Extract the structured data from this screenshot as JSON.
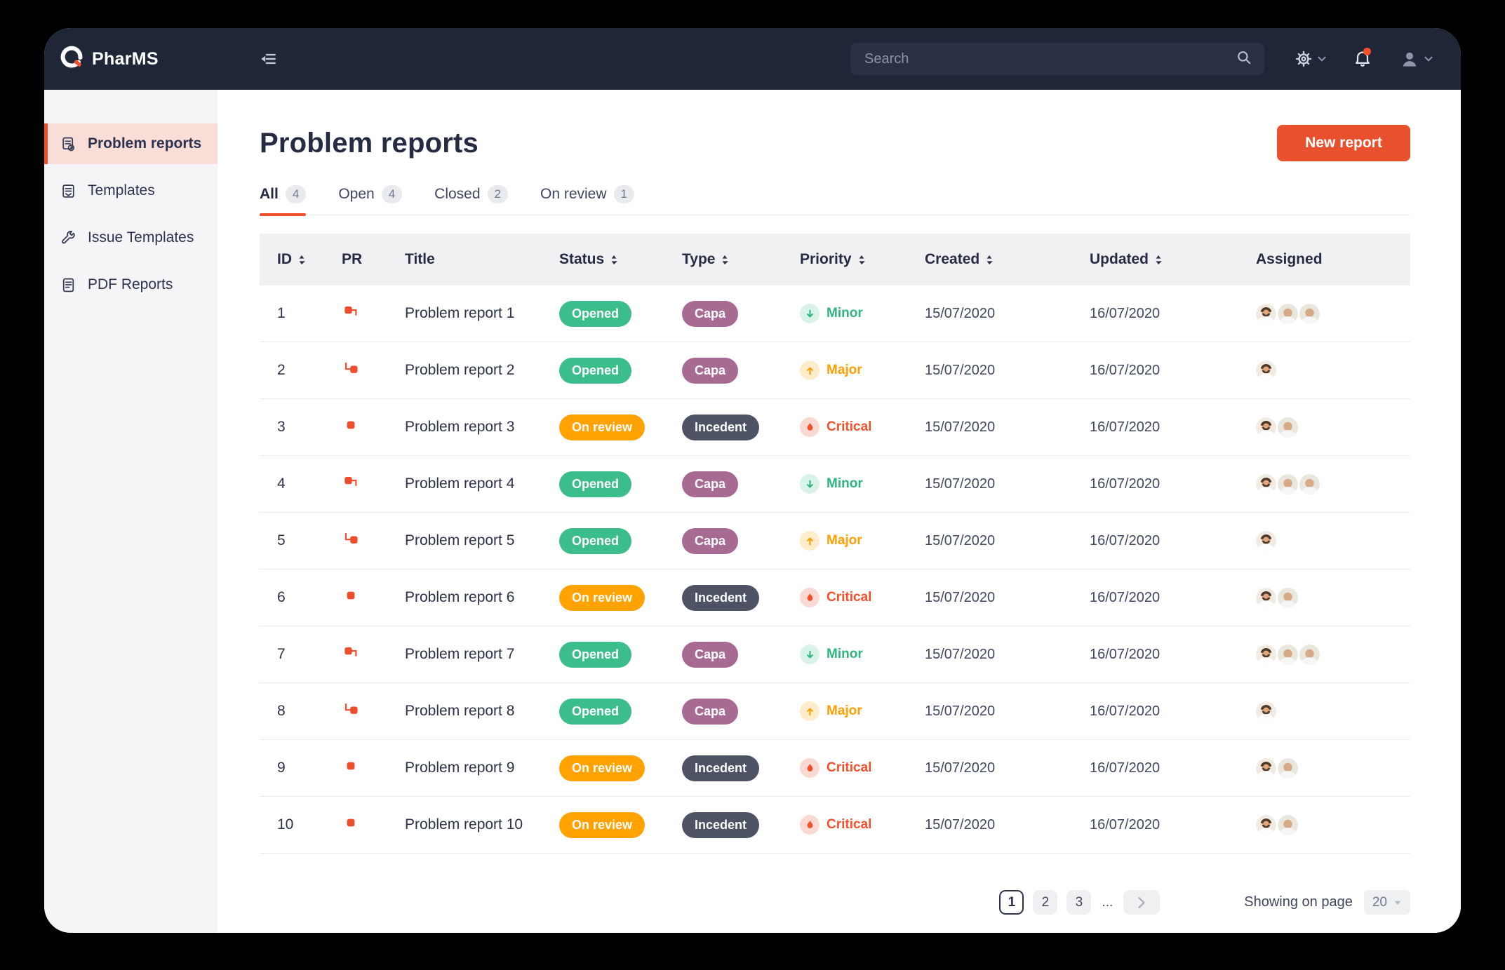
{
  "app": {
    "brand": "PharMS"
  },
  "header": {
    "search_placeholder": "Search",
    "icons": [
      "collapse-sidebar-icon",
      "search-icon",
      "gear-icon",
      "bell-icon",
      "user-icon",
      "chevron-down-icon"
    ]
  },
  "sidebar": {
    "items": [
      {
        "label": "Problem reports",
        "icon": "problem-report-icon",
        "active": true
      },
      {
        "label": "Templates",
        "icon": "templates-icon",
        "active": false
      },
      {
        "label": "Issue Templates",
        "icon": "wrench-icon",
        "active": false
      },
      {
        "label": "PDF Reports",
        "icon": "pdf-report-icon",
        "active": false
      }
    ]
  },
  "page": {
    "title": "Problem reports",
    "new_report_label": "New report"
  },
  "tabs": [
    {
      "label": "All",
      "count": "4",
      "active": true
    },
    {
      "label": "Open",
      "count": "4",
      "active": false
    },
    {
      "label": "Closed",
      "count": "2",
      "active": false
    },
    {
      "label": "On review",
      "count": "1",
      "active": false
    }
  ],
  "table": {
    "columns": [
      {
        "label": "ID",
        "sortable": true
      },
      {
        "label": "PR",
        "sortable": false
      },
      {
        "label": "Title",
        "sortable": false
      },
      {
        "label": "Status",
        "sortable": true
      },
      {
        "label": "Type",
        "sortable": true
      },
      {
        "label": "Priority",
        "sortable": true
      },
      {
        "label": "Created",
        "sortable": true
      },
      {
        "label": "Updated",
        "sortable": true
      },
      {
        "label": "Assigned",
        "sortable": false
      }
    ],
    "rows": [
      {
        "id": "1",
        "pr": "parent",
        "title": "Problem report 1",
        "status": "Opened",
        "type": "Capa",
        "priority": "Minor",
        "created": "15/07/2020",
        "updated": "16/07/2020",
        "assignees": [
          "beard",
          "bald",
          "bald"
        ]
      },
      {
        "id": "2",
        "pr": "child",
        "title": "Problem report 2",
        "status": "Opened",
        "type": "Capa",
        "priority": "Major",
        "created": "15/07/2020",
        "updated": "16/07/2020",
        "assignees": [
          "beard"
        ]
      },
      {
        "id": "3",
        "pr": "single",
        "title": "Problem report 3",
        "status": "On review",
        "type": "Incedent",
        "priority": "Critical",
        "created": "15/07/2020",
        "updated": "16/07/2020",
        "assignees": [
          "beard",
          "bald"
        ]
      },
      {
        "id": "4",
        "pr": "parent",
        "title": "Problem report 4",
        "status": "Opened",
        "type": "Capa",
        "priority": "Minor",
        "created": "15/07/2020",
        "updated": "16/07/2020",
        "assignees": [
          "beard",
          "bald",
          "bald"
        ]
      },
      {
        "id": "5",
        "pr": "child",
        "title": "Problem report 5",
        "status": "Opened",
        "type": "Capa",
        "priority": "Major",
        "created": "15/07/2020",
        "updated": "16/07/2020",
        "assignees": [
          "beard"
        ]
      },
      {
        "id": "6",
        "pr": "single",
        "title": "Problem report 6",
        "status": "On review",
        "type": "Incedent",
        "priority": "Critical",
        "created": "15/07/2020",
        "updated": "16/07/2020",
        "assignees": [
          "beard",
          "bald"
        ]
      },
      {
        "id": "7",
        "pr": "parent",
        "title": "Problem report 7",
        "status": "Opened",
        "type": "Capa",
        "priority": "Minor",
        "created": "15/07/2020",
        "updated": "16/07/2020",
        "assignees": [
          "beard",
          "bald",
          "bald"
        ]
      },
      {
        "id": "8",
        "pr": "child",
        "title": "Problem report 8",
        "status": "Opened",
        "type": "Capa",
        "priority": "Major",
        "created": "15/07/2020",
        "updated": "16/07/2020",
        "assignees": [
          "beard"
        ]
      },
      {
        "id": "9",
        "pr": "single",
        "title": "Problem report 9",
        "status": "On review",
        "type": "Incedent",
        "priority": "Critical",
        "created": "15/07/2020",
        "updated": "16/07/2020",
        "assignees": [
          "beard",
          "bald"
        ]
      },
      {
        "id": "10",
        "pr": "single",
        "title": "Problem report 10",
        "status": "On review",
        "type": "Incedent",
        "priority": "Critical",
        "created": "15/07/2020",
        "updated": "16/07/2020",
        "assignees": [
          "beard",
          "bald"
        ]
      }
    ]
  },
  "pagination": {
    "pages": [
      "1",
      "2",
      "3"
    ],
    "active_page": "1",
    "ellipsis": "...",
    "showing_label": "Showing on page",
    "page_size": "20"
  },
  "colors": {
    "topbar": "#1f2638",
    "accent": "#ed4e2b",
    "button": "#e8502e",
    "status_opened": "#3cbd8c",
    "status_on_review": "#ffa202",
    "type_capa": "#a76b93",
    "type_incedent": "#4d5365",
    "priority_minor": "#2eb57f",
    "priority_major": "#ff9e02",
    "priority_critical": "#f4502a",
    "sidebar_bg": "#f5f5f7",
    "active_item_bg": "#f8ded7",
    "table_header_bg": "#f1f1f4"
  }
}
